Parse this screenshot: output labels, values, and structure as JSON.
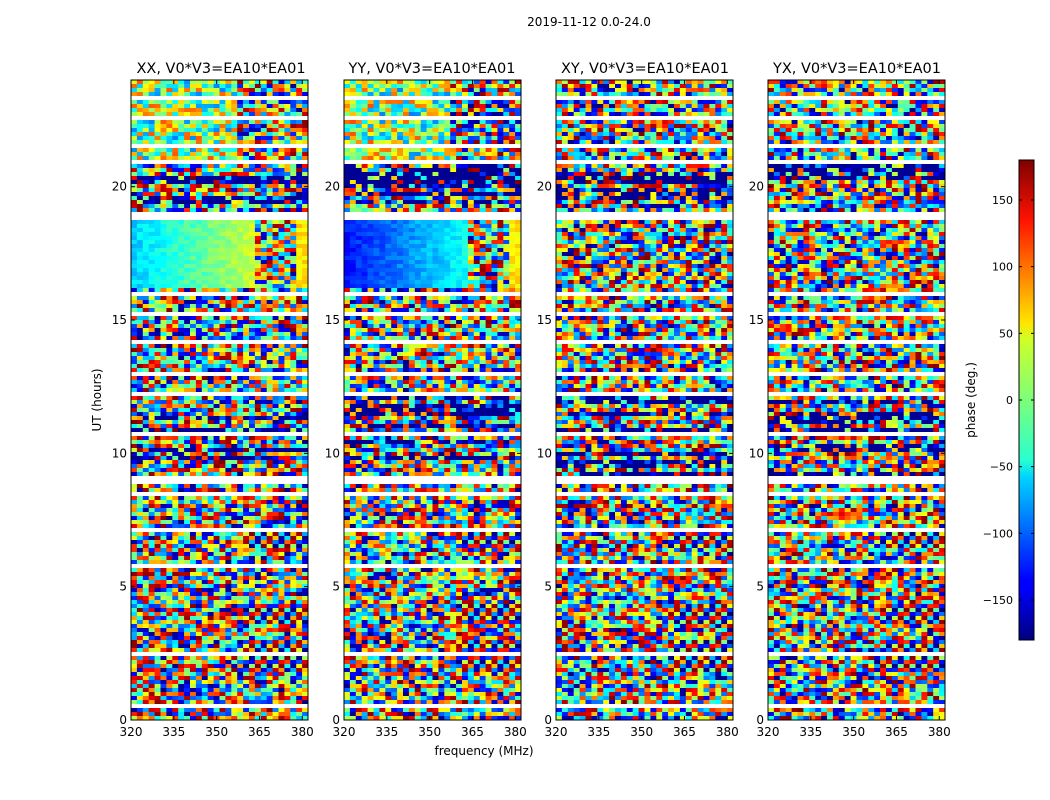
{
  "figure": {
    "suptitle": "2019-11-12 0.0-24.0",
    "ylabel": "UT (hours)",
    "xlabel": "frequency (MHz)"
  },
  "chart_data": [
    {
      "type": "heatmap",
      "title": "XX, V0*V3=EA10*EA01",
      "x_range": [
        320,
        382
      ],
      "y_range": [
        0,
        24
      ],
      "xticks": [
        320,
        335,
        350,
        365,
        380
      ],
      "yticks": [
        0,
        5,
        10,
        15,
        20
      ],
      "colormap": "jet",
      "value_label": "phase (deg.)"
    },
    {
      "type": "heatmap",
      "title": "YY, V0*V3=EA10*EA01",
      "x_range": [
        320,
        382
      ],
      "y_range": [
        0,
        24
      ],
      "xticks": [
        320,
        335,
        350,
        365,
        380
      ],
      "yticks": [
        0,
        5,
        10,
        15,
        20
      ],
      "colormap": "jet",
      "value_label": "phase (deg.)"
    },
    {
      "type": "heatmap",
      "title": "XY, V0*V3=EA10*EA01",
      "x_range": [
        320,
        382
      ],
      "y_range": [
        0,
        24
      ],
      "xticks": [
        320,
        335,
        350,
        365,
        380
      ],
      "yticks": [
        0,
        5,
        10,
        15,
        20
      ],
      "colormap": "jet",
      "value_label": "phase (deg.)"
    },
    {
      "type": "heatmap",
      "title": "YX, V0*V3=EA10*EA01",
      "x_range": [
        320,
        382
      ],
      "y_range": [
        0,
        24
      ],
      "xticks": [
        320,
        335,
        350,
        365,
        380
      ],
      "yticks": [
        0,
        5,
        10,
        15,
        20
      ],
      "colormap": "jet",
      "value_label": "phase (deg.)"
    }
  ],
  "colorbar": {
    "label": "phase (deg.)",
    "range": [
      -180,
      180
    ],
    "ticks": [
      150,
      100,
      50,
      0,
      -50,
      -100,
      -150
    ],
    "tick_labels": [
      "150",
      "100",
      "50",
      "0",
      "−50",
      "−100",
      "−150"
    ],
    "colormap": "jet"
  }
}
